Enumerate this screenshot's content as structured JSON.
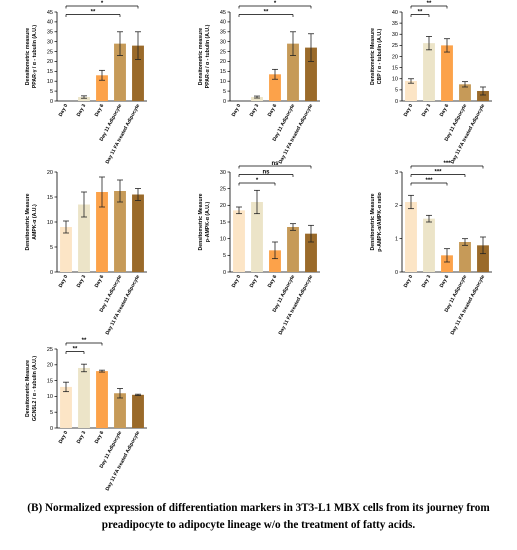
{
  "colors": [
    "#fce5c6",
    "#ece4c8",
    "#fca24a",
    "#c69a58",
    "#9a6a2a"
  ],
  "chart_data": [
    {
      "type": "bar",
      "ylabel_lines": [
        "Densitometric measure",
        "PPAR-γ / α - tubulin (A.U.)"
      ],
      "categories": [
        "Day 0",
        "Day 3",
        "Day 6",
        "Day 11 Adipocyte",
        "Day 11 FA treated Adipocyte"
      ],
      "values": [
        0,
        2,
        13,
        29,
        28
      ],
      "errors": [
        0,
        0.6,
        2.5,
        6,
        7
      ],
      "ylim": [
        0,
        45
      ],
      "yticks": [
        "0",
        "5",
        "10",
        "15",
        "20",
        "25",
        "30",
        "35",
        "40",
        "45"
      ],
      "significance": [
        {
          "from": 0,
          "to": 4,
          "label": "*"
        },
        {
          "from": 0,
          "to": 3,
          "label": "**"
        }
      ]
    },
    {
      "type": "bar",
      "ylabel_lines": [
        "Densitometric measure",
        "PPAR-α / α - tubulin (A.U.)"
      ],
      "categories": [
        "Day 0",
        "Day 3",
        "Day 6",
        "Day 11 Adipocyte",
        "Day 11 FA treated Adipocyte"
      ],
      "values": [
        0,
        2,
        13.5,
        29,
        27
      ],
      "errors": [
        0,
        0.5,
        2.5,
        6,
        7
      ],
      "ylim": [
        0,
        45
      ],
      "yticks": [
        "0",
        "5",
        "10",
        "15",
        "20",
        "25",
        "30",
        "35",
        "40",
        "45"
      ],
      "significance": [
        {
          "from": 0,
          "to": 4,
          "label": "*"
        },
        {
          "from": 0,
          "to": 3,
          "label": "**"
        }
      ]
    },
    {
      "type": "bar",
      "ylabel_lines": [
        "Densitometric Measure",
        "CBP / α - tubulin (A.U.)"
      ],
      "categories": [
        "Day 0",
        "Day 3",
        "Day 6",
        "Day 11 Adipocyte",
        "Day 11 FA treated Adipocyte"
      ],
      "values": [
        9,
        26,
        25,
        7.5,
        4.5
      ],
      "errors": [
        1,
        3,
        3,
        1.2,
        1.8
      ],
      "ylim": [
        0,
        40
      ],
      "yticks": [
        "0",
        "5",
        "10",
        "15",
        "20",
        "25",
        "30",
        "35",
        "40"
      ],
      "significance": [
        {
          "from": 0,
          "to": 2,
          "label": "**"
        },
        {
          "from": 0,
          "to": 1,
          "label": "**"
        }
      ]
    },
    {
      "type": "bar",
      "ylabel_lines": [
        "Densitometric Measure",
        "AMPK-α (A.U.)"
      ],
      "categories": [
        "Day 0",
        "Day 3",
        "Day 6",
        "Day 11 Adipocyte",
        "Day 11 FA treated Adipocyte"
      ],
      "values": [
        9,
        13.5,
        16,
        16.2,
        15.5
      ],
      "errors": [
        1.2,
        2.5,
        3,
        2.2,
        1.2
      ],
      "ylim": [
        0,
        20
      ],
      "yticks": [
        "0",
        "5",
        "10",
        "15",
        "20"
      ],
      "significance": []
    },
    {
      "type": "bar",
      "ylabel_lines": [
        "Densitometric Measure",
        "p-AMPK-α (A.U.)"
      ],
      "categories": [
        "Day 0",
        "Day 3",
        "Day 6",
        "Day 11 Adipocyte",
        "Day 11 FA treated Adipocyte"
      ],
      "values": [
        18.5,
        21,
        6.5,
        13.5,
        11.5
      ],
      "errors": [
        1,
        3.5,
        2.5,
        1,
        2.5
      ],
      "ylim": [
        0,
        30
      ],
      "yticks": [
        "0",
        "5",
        "10",
        "15",
        "20",
        "25",
        "30"
      ],
      "significance": [
        {
          "from": 0,
          "to": 4,
          "label": "ns"
        },
        {
          "from": 0,
          "to": 3,
          "label": "ns"
        },
        {
          "from": 0,
          "to": 2,
          "label": "*"
        }
      ]
    },
    {
      "type": "bar",
      "ylabel_lines": [
        "Densitometric Measure",
        "p-AMPK-α/AMPK-α ratio"
      ],
      "categories": [
        "Day 0",
        "Day 3",
        "Day 6",
        "Day 11 Adipocyte",
        "Day 11 FA treated Adipocyte"
      ],
      "values": [
        2.1,
        1.6,
        0.5,
        0.9,
        0.8
      ],
      "errors": [
        0.2,
        0.1,
        0.2,
        0.1,
        0.25
      ],
      "ylim": [
        0,
        3
      ],
      "yticks": [
        "0",
        "1",
        "2",
        "3"
      ],
      "significance": [
        {
          "from": 0,
          "to": 4,
          "label": "***"
        },
        {
          "from": 0,
          "to": 3,
          "label": "***"
        },
        {
          "from": 0,
          "to": 2,
          "label": "***"
        }
      ]
    },
    {
      "type": "bar",
      "ylabel_lines": [
        "Densitometric Measure",
        "GCN5L2 / α - tubulin (A.U.)"
      ],
      "categories": [
        "Day 0",
        "Day 3",
        "Day 6",
        "Day 11 Adipocyte",
        "Day 11 FA treated Adipocyte"
      ],
      "values": [
        13,
        19,
        18,
        11,
        10.5
      ],
      "errors": [
        1.5,
        1.2,
        0.3,
        1.5,
        0.2
      ],
      "ylim": [
        0,
        25
      ],
      "yticks": [
        "0",
        "5",
        "10",
        "15",
        "20",
        "25"
      ],
      "significance": [
        {
          "from": 0,
          "to": 2,
          "label": "**"
        },
        {
          "from": 0,
          "to": 1,
          "label": "**"
        }
      ]
    }
  ],
  "caption": "(B) Normalized expression of differentiation markers in 3T3-L1 MBX cells from its journey from preadipocyte to adipocyte lineage w/o the treatment of fatty acids."
}
